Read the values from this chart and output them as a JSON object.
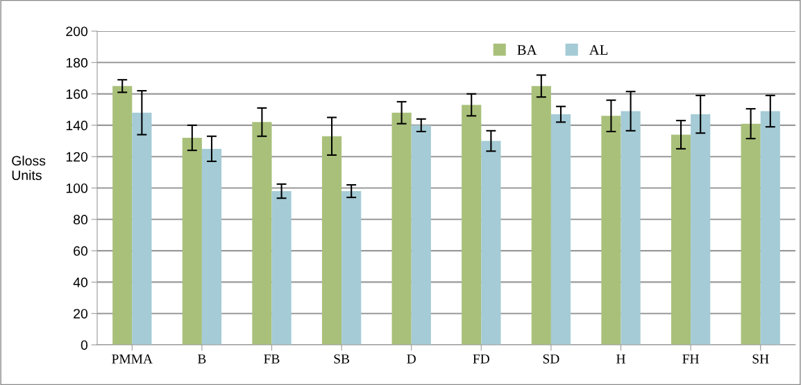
{
  "chart_data": {
    "type": "bar",
    "ylabel": "Gloss\nUnits",
    "categories": [
      "PMMA",
      "B",
      "FB",
      "SB",
      "D",
      "FD",
      "SD",
      "H",
      "FH",
      "SH"
    ],
    "series": [
      {
        "name": "BA",
        "color": "#a9c07a",
        "values": [
          165,
          132,
          142,
          133,
          148,
          153,
          165,
          146,
          134,
          141
        ],
        "errors": [
          4,
          8,
          9,
          12,
          7,
          7,
          7,
          10,
          9,
          9.5
        ]
      },
      {
        "name": "AL",
        "color": "#a4cbd6",
        "values": [
          148,
          125,
          98,
          98,
          140,
          130,
          147,
          149,
          147,
          149
        ],
        "errors": [
          14,
          8,
          4.5,
          4,
          4,
          6.5,
          5,
          12.5,
          12,
          10
        ]
      }
    ],
    "ylim": [
      0,
      200
    ],
    "yticks": [
      0,
      20,
      40,
      60,
      80,
      100,
      120,
      140,
      160,
      180,
      200
    ],
    "grid": "y",
    "legend": "top"
  }
}
